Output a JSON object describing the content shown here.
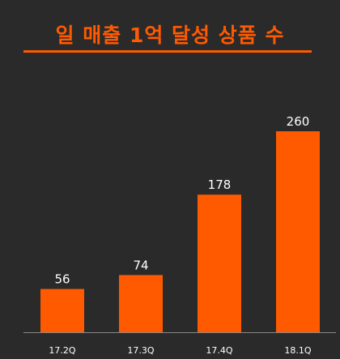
{
  "chart_data": {
    "type": "bar",
    "title": "일 매출 1억 달성 상품 수",
    "categories": [
      "17.2Q",
      "17.3Q",
      "17.4Q",
      "18.1Q"
    ],
    "values": [
      56,
      74,
      178,
      260
    ],
    "xlabel": "",
    "ylabel": "",
    "ylim": [
      0,
      260
    ],
    "grid": false,
    "legend": "none",
    "colors": {
      "background": "#2a2a2a",
      "bar": "#ff5a00",
      "title": "#ff5a00",
      "text": "#ffffff",
      "axis": "#888888"
    }
  }
}
